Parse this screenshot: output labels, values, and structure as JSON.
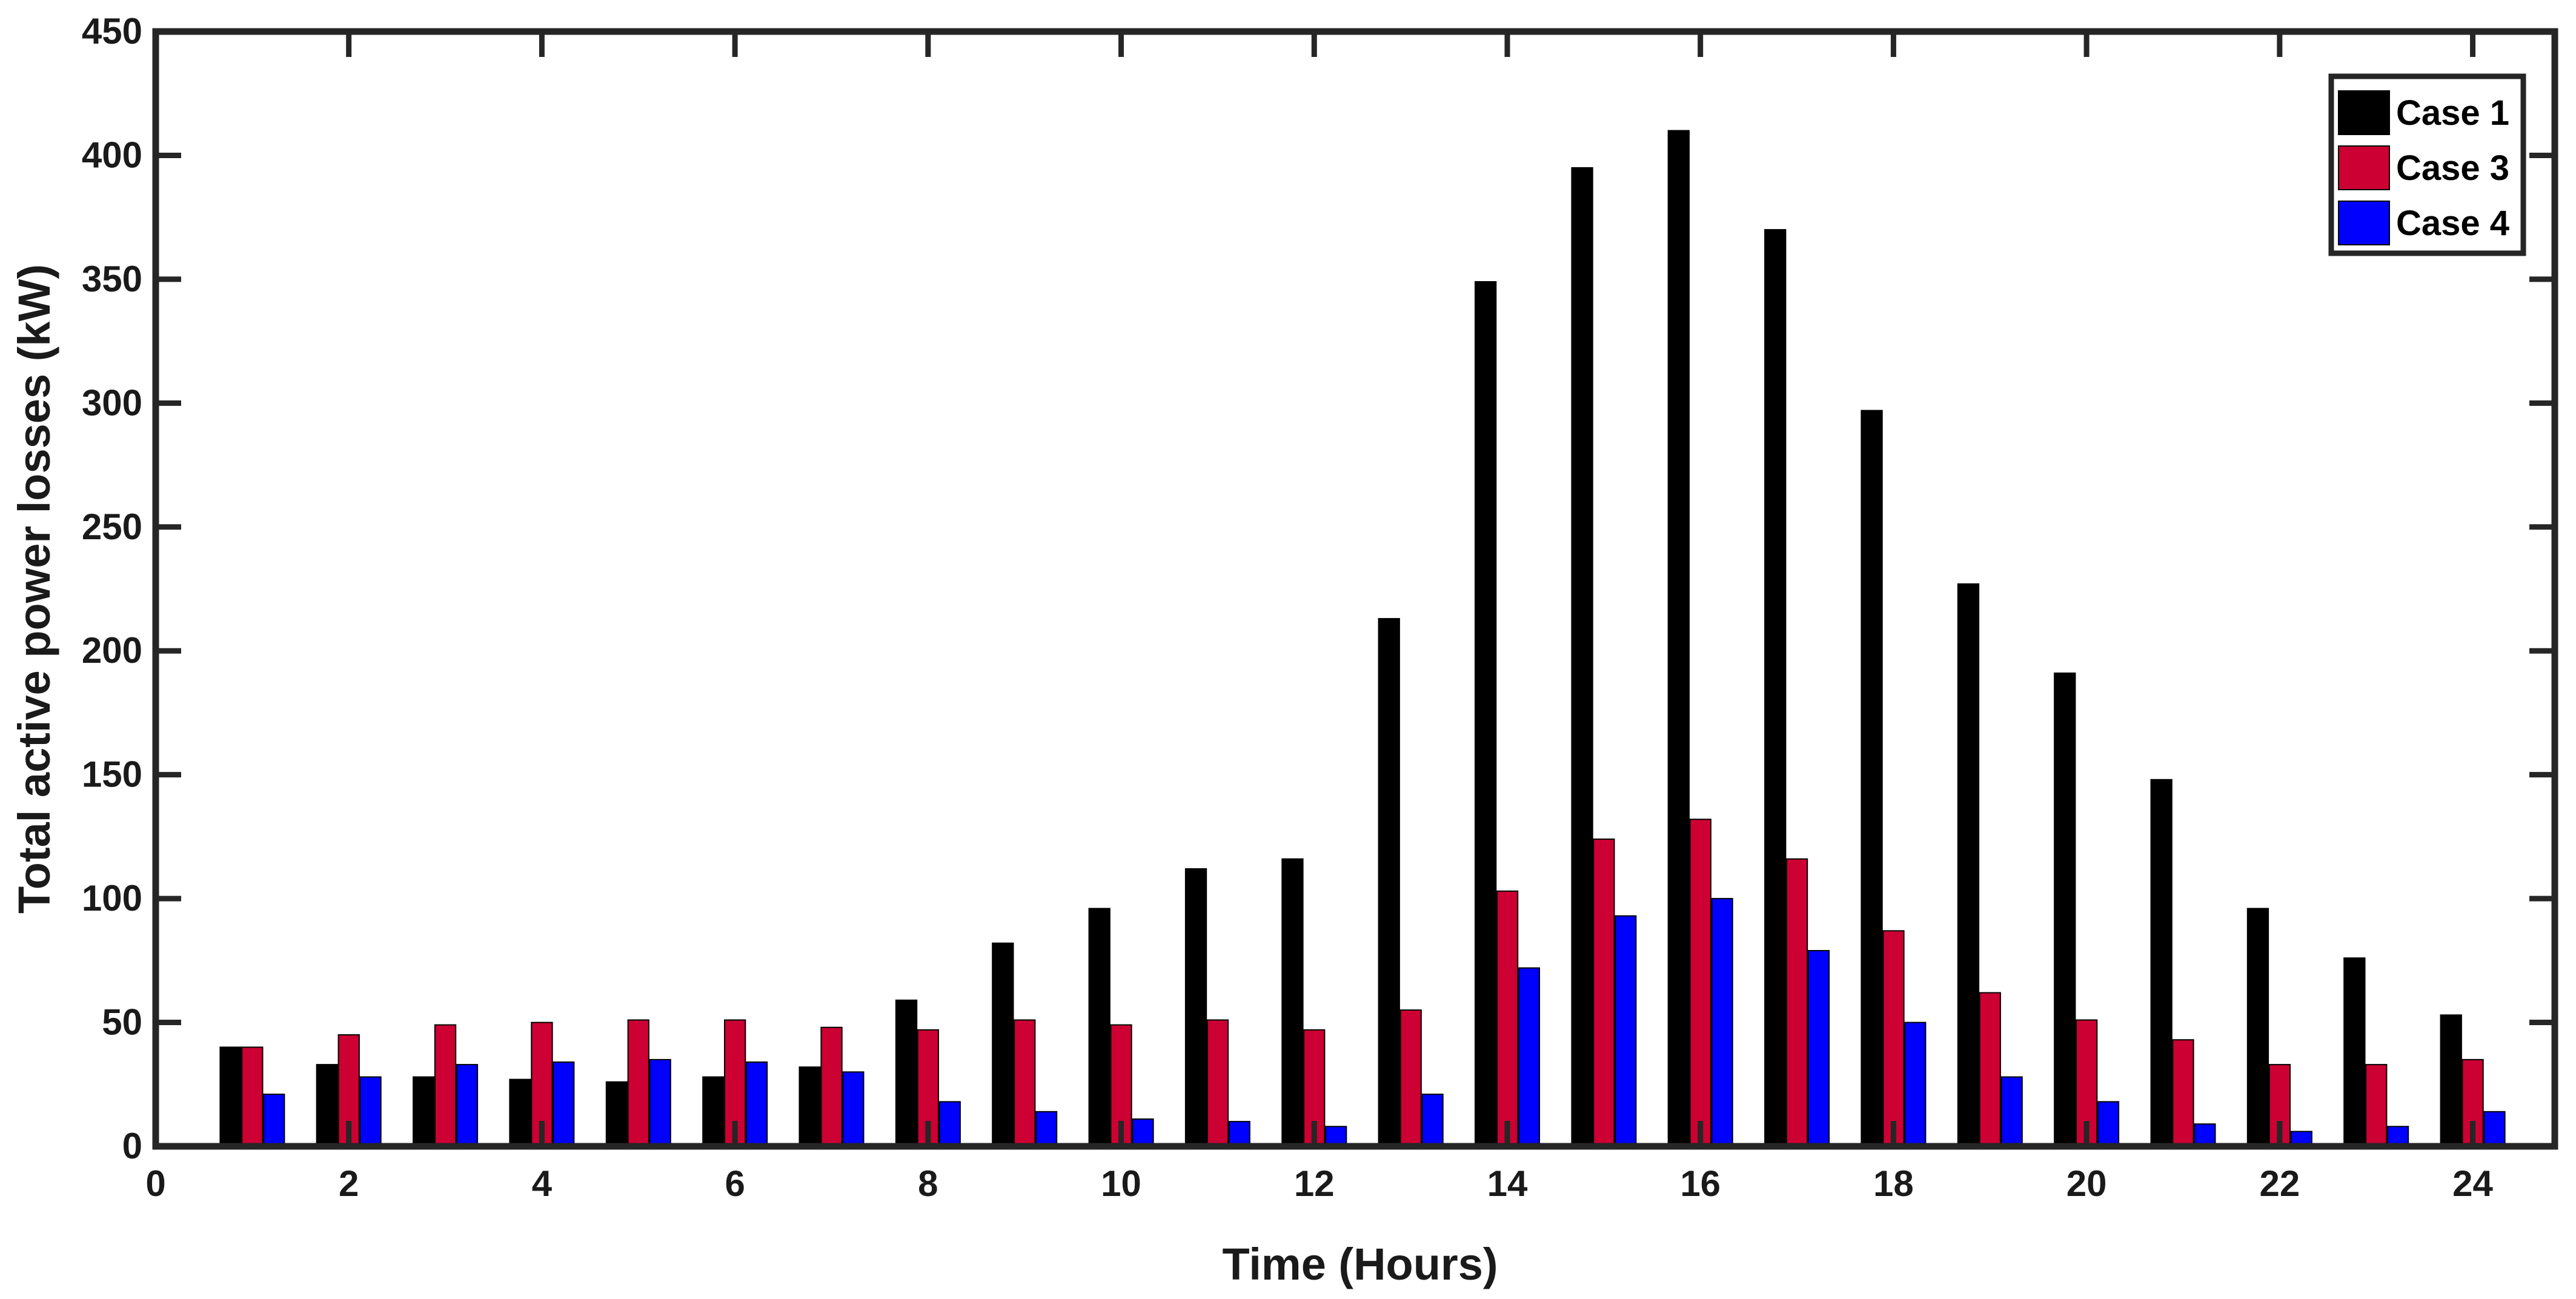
{
  "chart_data": {
    "type": "bar",
    "title": "",
    "xlabel": "Time (Hours)",
    "ylabel": "Total active power losses (kW)",
    "xlim": [
      0,
      24.85
    ],
    "ylim": [
      0,
      450
    ],
    "x_ticks": [
      0,
      2,
      4,
      6,
      8,
      10,
      12,
      14,
      16,
      18,
      20,
      22,
      24
    ],
    "y_ticks": [
      0,
      50,
      100,
      150,
      200,
      250,
      300,
      350,
      400,
      450
    ],
    "grid": false,
    "legend_position": "top-right",
    "categories": [
      1,
      2,
      3,
      4,
      5,
      6,
      7,
      8,
      9,
      10,
      11,
      12,
      13,
      14,
      15,
      16,
      17,
      18,
      19,
      20,
      21,
      22,
      23,
      24
    ],
    "series": [
      {
        "name": "Case 1",
        "color": "#000000",
        "values": [
          40,
          33,
          28,
          27,
          26,
          28,
          32,
          59,
          82,
          96,
          112,
          116,
          213,
          349,
          395,
          410,
          370,
          297,
          227,
          191,
          148,
          96,
          76,
          53
        ]
      },
      {
        "name": "Case 3",
        "color": "#cc0033",
        "values": [
          40,
          45,
          49,
          50,
          51,
          51,
          48,
          47,
          51,
          49,
          51,
          47,
          55,
          103,
          124,
          132,
          116,
          87,
          62,
          51,
          43,
          33,
          33,
          35
        ]
      },
      {
        "name": "Case 4",
        "color": "#0000ff",
        "values": [
          21,
          28,
          33,
          34,
          35,
          34,
          30,
          18,
          14,
          11,
          10,
          8,
          21,
          72,
          93,
          100,
          79,
          50,
          28,
          18,
          9,
          6,
          8,
          14
        ]
      }
    ]
  }
}
